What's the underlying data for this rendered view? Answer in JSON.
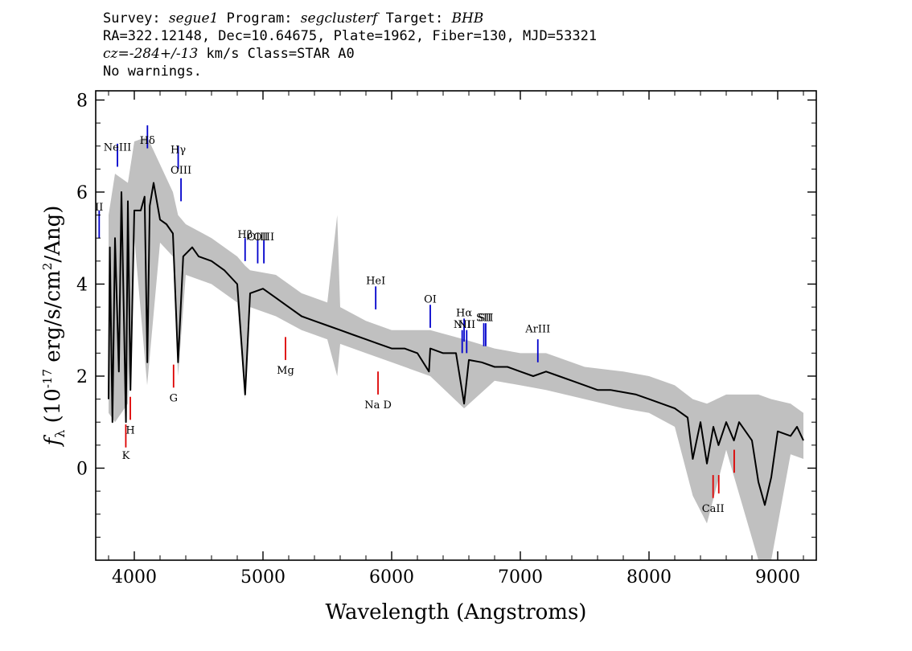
{
  "header": {
    "l1_survey_label": "Survey: ",
    "l1_survey": "segue1",
    "l1_program_label": " Program: ",
    "l1_program": "segclusterf",
    "l1_target_label": " Target: ",
    "l1_target": "BHB",
    "l2": "RA=322.12148, Dec=10.64675, Plate=1962, Fiber=130, MJD=53321",
    "l3_cz": "cz=-284+/-13",
    "l3_rest": " km/s Class=STAR A0",
    "l4": "No warnings."
  },
  "chart_data": {
    "type": "line",
    "xlabel": "Wavelength (Angstroms)",
    "ylabel_main": "f",
    "ylabel_sub": "λ",
    "ylabel_units_a": " (10",
    "ylabel_units_exp": "-17",
    "ylabel_units_b": " erg/s/cm",
    "ylabel_units_exp2": "2",
    "ylabel_units_c": "/Ang)",
    "xlim": [
      3700,
      9300
    ],
    "ylim": [
      -2,
      8.2
    ],
    "xticks": [
      4000,
      5000,
      6000,
      7000,
      8000,
      9000
    ],
    "yticks": [
      0,
      2,
      4,
      6,
      8
    ],
    "colors": {
      "flux": "#000000",
      "error": "#c0c0c0",
      "emission": "#0000cc",
      "absorption": "#dd0000"
    },
    "series": [
      {
        "role": "flux",
        "points": [
          [
            3800,
            1.5
          ],
          [
            3810,
            4.8
          ],
          [
            3830,
            1.0
          ],
          [
            3850,
            5.0
          ],
          [
            3880,
            2.1
          ],
          [
            3900,
            6.0
          ],
          [
            3935,
            1.0
          ],
          [
            3950,
            5.8
          ],
          [
            3970,
            1.7
          ],
          [
            4000,
            5.6
          ],
          [
            4050,
            5.6
          ],
          [
            4080,
            5.9
          ],
          [
            4101,
            2.3
          ],
          [
            4120,
            5.7
          ],
          [
            4150,
            6.2
          ],
          [
            4200,
            5.4
          ],
          [
            4250,
            5.3
          ],
          [
            4300,
            5.1
          ],
          [
            4340,
            2.3
          ],
          [
            4380,
            4.6
          ],
          [
            4450,
            4.8
          ],
          [
            4500,
            4.6
          ],
          [
            4600,
            4.5
          ],
          [
            4700,
            4.3
          ],
          [
            4800,
            4.0
          ],
          [
            4861,
            1.6
          ],
          [
            4900,
            3.8
          ],
          [
            5000,
            3.9
          ],
          [
            5100,
            3.7
          ],
          [
            5200,
            3.5
          ],
          [
            5300,
            3.3
          ],
          [
            5400,
            3.2
          ],
          [
            5500,
            3.1
          ],
          [
            5600,
            3.0
          ],
          [
            5700,
            2.9
          ],
          [
            5800,
            2.8
          ],
          [
            5900,
            2.7
          ],
          [
            6000,
            2.6
          ],
          [
            6100,
            2.6
          ],
          [
            6200,
            2.5
          ],
          [
            6290,
            2.1
          ],
          [
            6300,
            2.6
          ],
          [
            6400,
            2.5
          ],
          [
            6500,
            2.5
          ],
          [
            6563,
            1.4
          ],
          [
            6600,
            2.35
          ],
          [
            6700,
            2.3
          ],
          [
            6800,
            2.2
          ],
          [
            6900,
            2.2
          ],
          [
            7000,
            2.1
          ],
          [
            7100,
            2.0
          ],
          [
            7200,
            2.1
          ],
          [
            7300,
            2.0
          ],
          [
            7400,
            1.9
          ],
          [
            7500,
            1.8
          ],
          [
            7600,
            1.7
          ],
          [
            7700,
            1.7
          ],
          [
            7800,
            1.65
          ],
          [
            7900,
            1.6
          ],
          [
            8000,
            1.5
          ],
          [
            8100,
            1.4
          ],
          [
            8200,
            1.3
          ],
          [
            8300,
            1.1
          ],
          [
            8340,
            0.2
          ],
          [
            8400,
            1.0
          ],
          [
            8450,
            0.1
          ],
          [
            8500,
            0.9
          ],
          [
            8540,
            0.5
          ],
          [
            8600,
            1.0
          ],
          [
            8660,
            0.6
          ],
          [
            8700,
            1.0
          ],
          [
            8800,
            0.6
          ],
          [
            8850,
            -0.3
          ],
          [
            8900,
            -0.8
          ],
          [
            8950,
            -0.2
          ],
          [
            9000,
            0.8
          ],
          [
            9100,
            0.7
          ],
          [
            9150,
            0.9
          ],
          [
            9200,
            0.6
          ]
        ]
      },
      {
        "role": "error_band",
        "points": [
          [
            3800,
            1.2,
            5.5
          ],
          [
            3850,
            1.0,
            6.4
          ],
          [
            3950,
            1.4,
            6.2
          ],
          [
            4000,
            5.0,
            7.1
          ],
          [
            4100,
            1.8,
            7.2
          ],
          [
            4200,
            4.9,
            6.6
          ],
          [
            4300,
            4.6,
            6.0
          ],
          [
            4340,
            2.0,
            5.5
          ],
          [
            4400,
            4.2,
            5.3
          ],
          [
            4600,
            4.0,
            5.0
          ],
          [
            4800,
            3.6,
            4.6
          ],
          [
            4861,
            1.5,
            4.4
          ],
          [
            4900,
            3.5,
            4.3
          ],
          [
            5100,
            3.3,
            4.2
          ],
          [
            5300,
            3.0,
            3.8
          ],
          [
            5500,
            2.8,
            3.6
          ],
          [
            5577,
            2.0,
            5.5
          ],
          [
            5600,
            2.7,
            3.5
          ],
          [
            5800,
            2.5,
            3.2
          ],
          [
            6000,
            2.3,
            3.0
          ],
          [
            6300,
            2.0,
            3.0
          ],
          [
            6563,
            1.3,
            2.8
          ],
          [
            6800,
            1.9,
            2.6
          ],
          [
            7000,
            1.8,
            2.5
          ],
          [
            7200,
            1.7,
            2.5
          ],
          [
            7500,
            1.5,
            2.2
          ],
          [
            7800,
            1.3,
            2.1
          ],
          [
            8000,
            1.2,
            2.0
          ],
          [
            8200,
            0.9,
            1.8
          ],
          [
            8340,
            -0.6,
            1.5
          ],
          [
            8450,
            -1.2,
            1.4
          ],
          [
            8600,
            0.4,
            1.6
          ],
          [
            8850,
            -2.0,
            1.6
          ],
          [
            8950,
            -2.0,
            1.5
          ],
          [
            9100,
            0.3,
            1.4
          ],
          [
            9200,
            0.2,
            1.2
          ]
        ]
      }
    ],
    "emission_lines": [
      {
        "label": "NeIII",
        "wl": 3869,
        "y_label": 6.9,
        "y0": 7.05,
        "y1": 6.55
      },
      {
        "label": "Hδ",
        "wl": 4102,
        "y_label": 7.05,
        "y0": 7.45,
        "y1": 6.95
      },
      {
        "label": "Hγ",
        "wl": 4341,
        "y_label": 6.85,
        "y0": 7.0,
        "y1": 6.5
      },
      {
        "label": "OIII",
        "wl": 4363,
        "y_label": 6.4,
        "y0": 6.3,
        "y1": 5.8
      },
      {
        "label": "II",
        "wl": 3727,
        "y_label": 5.6,
        "y0": 5.6,
        "y1": 5.0
      },
      {
        "label": "Hβ",
        "wl": 4861,
        "y_label": 5.0,
        "y0": 5.0,
        "y1": 4.5
      },
      {
        "label": "OIII",
        "wl": 4959,
        "y_label": 4.95,
        "y0": 4.95,
        "y1": 4.45
      },
      {
        "label": "OIII",
        "wl": 5007,
        "y_label": 4.95,
        "y0": 4.95,
        "y1": 4.45
      },
      {
        "label": "HeI",
        "wl": 5876,
        "y_label": 4.0,
        "y0": 3.95,
        "y1": 3.45
      },
      {
        "label": "OI",
        "wl": 6300,
        "y_label": 3.6,
        "y0": 3.55,
        "y1": 3.05
      },
      {
        "label": "NII",
        "wl": 6548,
        "y_label": 3.05,
        "y0": 3.0,
        "y1": 2.5
      },
      {
        "label": "Hα",
        "wl": 6563,
        "y_label": 3.3,
        "y0": 3.25,
        "y1": 2.75
      },
      {
        "label": "NII",
        "wl": 6583,
        "y_label": 3.05,
        "y0": 3.0,
        "y1": 2.5
      },
      {
        "label": "SII",
        "wl": 6716,
        "y_label": 3.2,
        "y0": 3.15,
        "y1": 2.65
      },
      {
        "label": "SII",
        "wl": 6731,
        "y_label": 3.2,
        "y0": 3.15,
        "y1": 2.65
      },
      {
        "label": "ArIII",
        "wl": 7136,
        "y_label": 2.95,
        "y0": 2.8,
        "y1": 2.3
      }
    ],
    "absorption_lines": [
      {
        "label": "K",
        "wl": 3934,
        "y_label": 0.2,
        "y0": 0.95,
        "y1": 0.45
      },
      {
        "label": "H",
        "wl": 3969,
        "y_label": 0.75,
        "y0": 1.55,
        "y1": 1.05
      },
      {
        "label": "G",
        "wl": 4305,
        "y_label": 1.45,
        "y0": 2.25,
        "y1": 1.75
      },
      {
        "label": "Mg",
        "wl": 5175,
        "y_label": 2.05,
        "y0": 2.85,
        "y1": 2.35
      },
      {
        "label": "Na  D",
        "wl": 5894,
        "y_label": 1.3,
        "y0": 2.1,
        "y1": 1.6
      },
      {
        "label": "CaII",
        "wl": 8498,
        "y_label": -0.95,
        "y0": -0.15,
        "y1": -0.65
      },
      {
        "label": "",
        "wl": 8542,
        "y_label": 0,
        "y0": -0.15,
        "y1": -0.55
      },
      {
        "label": "",
        "wl": 8662,
        "y_label": 0,
        "y0": 0.4,
        "y1": -0.1
      }
    ]
  }
}
